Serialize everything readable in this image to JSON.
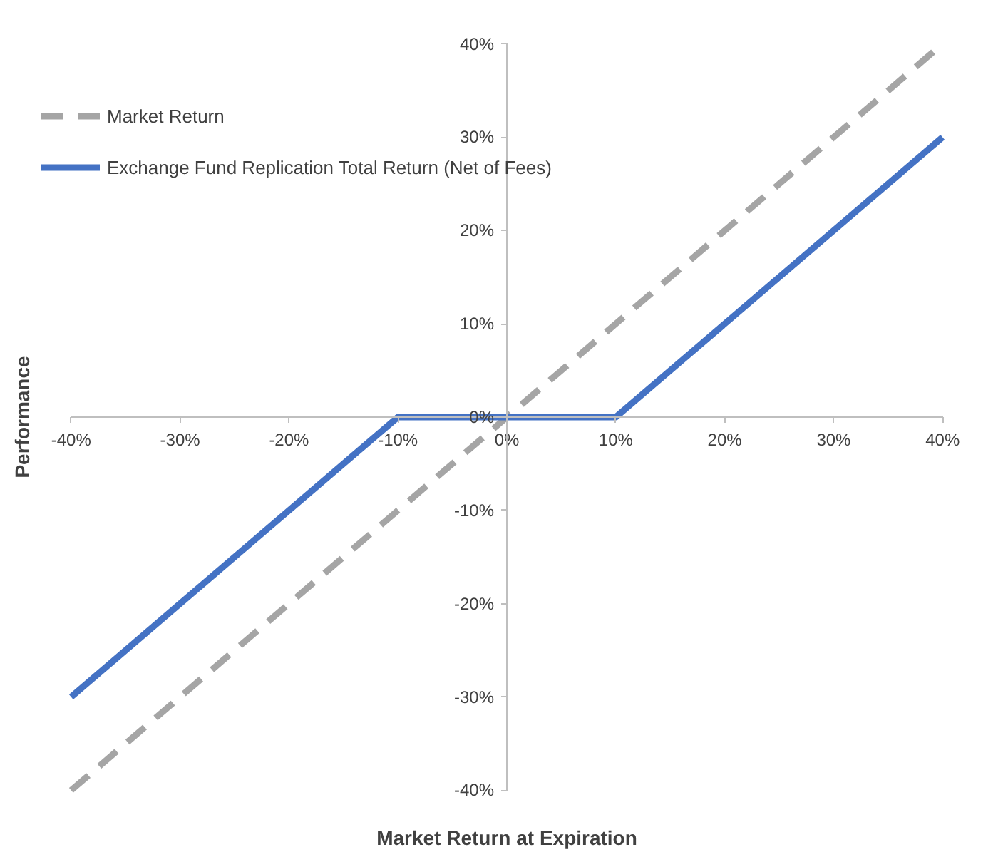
{
  "chart_data": {
    "type": "line",
    "xlabel": "Market Return at Expiration",
    "ylabel": "Performance",
    "x": [
      -40,
      -10,
      10,
      40
    ],
    "series": [
      {
        "name": "Market Return",
        "color": "#a5a5a5",
        "values": [
          -40,
          -10,
          10,
          40
        ],
        "line_style": "dashed"
      },
      {
        "name": "Exchange Fund Replication Total Return (Net of Fees)",
        "color": "#4472c4",
        "values": [
          -30,
          0,
          0,
          30
        ],
        "line_style": "solid"
      }
    ],
    "xlim": [
      -40,
      40
    ],
    "ylim": [
      -40,
      40
    ],
    "xticks": [
      {
        "value": -40,
        "label": "-40%"
      },
      {
        "value": -30,
        "label": "-30%"
      },
      {
        "value": -20,
        "label": "-20%"
      },
      {
        "value": -10,
        "label": "-10%"
      },
      {
        "value": 0,
        "label": "0%"
      },
      {
        "value": 10,
        "label": "10%"
      },
      {
        "value": 20,
        "label": "20%"
      },
      {
        "value": 30,
        "label": "30%"
      },
      {
        "value": 40,
        "label": "40%"
      }
    ],
    "yticks": [
      {
        "value": -40,
        "label": "-40%"
      },
      {
        "value": -30,
        "label": "-30%"
      },
      {
        "value": -20,
        "label": "-20%"
      },
      {
        "value": -10,
        "label": "-10%"
      },
      {
        "value": 0,
        "label": "0%"
      },
      {
        "value": 10,
        "label": "10%"
      },
      {
        "value": 20,
        "label": "20%"
      },
      {
        "value": 30,
        "label": "30%"
      },
      {
        "value": 40,
        "label": "40%"
      }
    ],
    "grid": false,
    "legend": "top left",
    "marker": "none"
  }
}
